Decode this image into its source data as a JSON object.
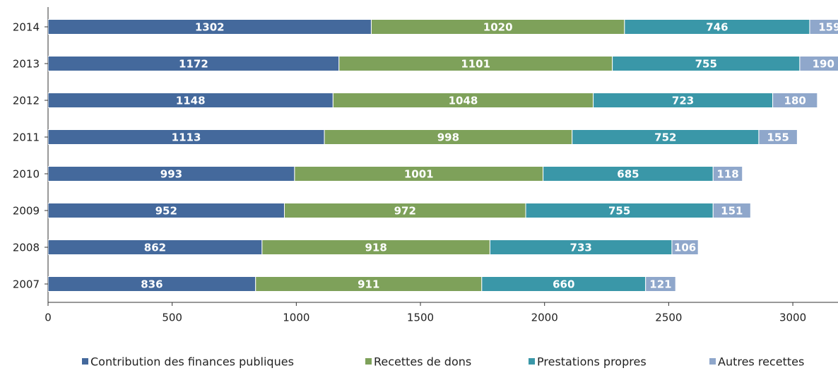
{
  "chart_data": {
    "type": "stacked-horizontal-bar",
    "categories": [
      "2014",
      "2013",
      "2012",
      "2011",
      "2010",
      "2009",
      "2008",
      "2007"
    ],
    "series": [
      {
        "name": "Contribution des finances publiques",
        "color": "#44699c",
        "values": [
          1302,
          1172,
          1148,
          1113,
          993,
          952,
          862,
          836
        ]
      },
      {
        "name": "Recettes de dons",
        "color": "#7ea15a",
        "values": [
          1020,
          1101,
          1048,
          998,
          1001,
          972,
          918,
          911
        ]
      },
      {
        "name": "Prestations propres",
        "color": "#3a97a8",
        "values": [
          746,
          755,
          723,
          752,
          685,
          755,
          733,
          660
        ]
      },
      {
        "name": "Autres recettes",
        "color": "#8fa7cb",
        "values": [
          159,
          190,
          180,
          155,
          118,
          151,
          106,
          121
        ]
      }
    ],
    "xlim": [
      0,
      3182
    ],
    "xticks": [
      0,
      500,
      1000,
      1500,
      2000,
      2500,
      3000
    ],
    "legend": "bottom"
  }
}
